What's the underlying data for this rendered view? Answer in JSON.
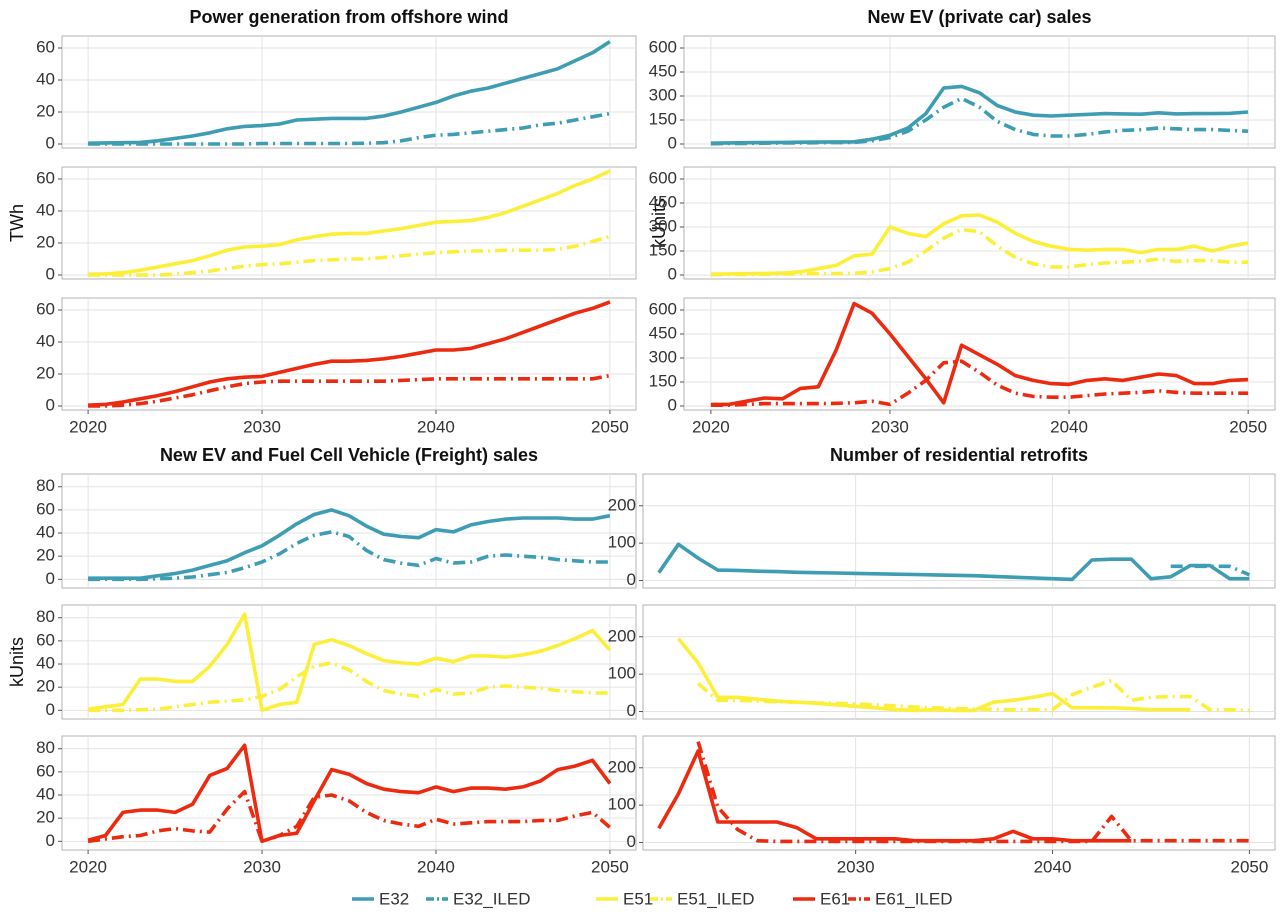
{
  "chart_data": [
    {
      "type": "line",
      "title": "Power generation from offshore wind",
      "y_label": "TWh",
      "x": [
        2020,
        2021,
        2022,
        2023,
        2024,
        2025,
        2026,
        2027,
        2028,
        2029,
        2030,
        2031,
        2032,
        2033,
        2034,
        2035,
        2036,
        2037,
        2038,
        2039,
        2040,
        2041,
        2042,
        2043,
        2044,
        2045,
        2046,
        2047,
        2048,
        2049,
        2050
      ],
      "xlim": [
        2018.5,
        2051.5
      ],
      "xticks": [
        2020,
        2030,
        2040,
        2050
      ],
      "ylim": [
        -2.5,
        67.5
      ],
      "yticks": [
        0,
        20,
        40,
        60
      ],
      "grid": true,
      "series": [
        {
          "name": "E32",
          "color": "#3e9db3",
          "linestyle": "solid",
          "values": [
            0.5,
            0.7,
            0.8,
            1,
            2,
            3.5,
            5,
            7,
            9.5,
            11,
            11.5,
            12.5,
            15,
            15.5,
            16,
            16,
            16,
            17.5,
            20,
            23,
            26,
            30,
            33,
            35,
            38,
            41,
            44,
            47,
            52,
            57,
            64
          ]
        },
        {
          "name": "E32_ILED",
          "color": "#3e9db3",
          "linestyle": "dashdot",
          "values": [
            0,
            0,
            0,
            0,
            0,
            0,
            0,
            0,
            0,
            0,
            0.3,
            0.3,
            0.3,
            0.3,
            0.3,
            0.3,
            0.5,
            0.8,
            2,
            4,
            5.5,
            6,
            7,
            8,
            9,
            10,
            12,
            13,
            15,
            17,
            19
          ]
        },
        {
          "name": "E51",
          "color": "#fcef3a",
          "linestyle": "solid",
          "values": [
            0.5,
            0.7,
            1.5,
            3,
            5,
            7,
            9,
            12,
            15.5,
            17.5,
            18,
            19,
            22,
            24,
            25.5,
            26,
            26,
            27.5,
            29,
            31,
            33,
            33.5,
            34,
            36,
            39,
            43,
            47,
            51,
            56,
            60,
            65
          ]
        },
        {
          "name": "E51_ILED",
          "color": "#fcef3a",
          "linestyle": "dashdot",
          "values": [
            0,
            0,
            0,
            0,
            0,
            0.5,
            1.5,
            2.5,
            4,
            5.5,
            6.5,
            7,
            8,
            9,
            9.5,
            10,
            10,
            11,
            12,
            13,
            14,
            14.5,
            15,
            15,
            15.5,
            15.5,
            15.5,
            16,
            18,
            21,
            24
          ]
        },
        {
          "name": "E61",
          "color": "#ec2a10",
          "linestyle": "solid",
          "values": [
            0.5,
            1,
            2.5,
            4.5,
            6.5,
            9,
            12,
            15,
            17,
            18,
            18.5,
            21,
            23.5,
            26,
            28,
            28,
            28.5,
            29.5,
            31,
            33,
            35,
            35,
            36,
            39,
            42,
            46,
            50,
            54,
            58,
            61,
            65
          ]
        },
        {
          "name": "E61_ILED",
          "color": "#ec2a10",
          "linestyle": "dashdot",
          "values": [
            0,
            0,
            0.5,
            1.5,
            3,
            5,
            7,
            9.5,
            12,
            14,
            15,
            15.5,
            15.5,
            15.5,
            15.5,
            15.5,
            15.5,
            15.5,
            16,
            16.5,
            17,
            17,
            17,
            17,
            17,
            17,
            17,
            17,
            17,
            17,
            19
          ]
        }
      ]
    },
    {
      "type": "line",
      "title": "New EV (private car) sales",
      "y_label": "kUnits",
      "x": [
        2020,
        2021,
        2022,
        2023,
        2024,
        2025,
        2026,
        2027,
        2028,
        2029,
        2030,
        2031,
        2032,
        2033,
        2034,
        2035,
        2036,
        2037,
        2038,
        2039,
        2040,
        2041,
        2042,
        2043,
        2044,
        2045,
        2046,
        2047,
        2048,
        2049,
        2050
      ],
      "xlim": [
        2018.5,
        2051.5
      ],
      "xticks": [
        2020,
        2030,
        2040,
        2050
      ],
      "ylim": [
        -25,
        675
      ],
      "yticks": [
        0,
        150,
        300,
        450,
        600
      ],
      "grid": true,
      "series": [
        {
          "name": "E32",
          "color": "#3e9db3",
          "linestyle": "solid",
          "values": [
            5,
            7,
            8,
            9,
            10,
            11,
            12,
            13,
            14,
            30,
            55,
            100,
            190,
            350,
            360,
            320,
            240,
            200,
            180,
            175,
            180,
            185,
            190,
            188,
            186,
            195,
            188,
            190,
            190,
            192,
            200
          ]
        },
        {
          "name": "E32_ILED",
          "color": "#3e9db3",
          "linestyle": "dashdot",
          "values": [
            2,
            3,
            4,
            5,
            6,
            7,
            8,
            9,
            10,
            20,
            40,
            80,
            150,
            230,
            285,
            230,
            140,
            90,
            60,
            50,
            50,
            60,
            75,
            85,
            90,
            100,
            95,
            90,
            90,
            85,
            80
          ]
        },
        {
          "name": "E51",
          "color": "#fcef3a",
          "linestyle": "solid",
          "values": [
            5,
            7,
            8,
            10,
            12,
            20,
            40,
            60,
            120,
            130,
            300,
            260,
            240,
            320,
            370,
            375,
            330,
            260,
            210,
            180,
            160,
            155,
            160,
            160,
            140,
            160,
            160,
            180,
            150,
            180,
            200
          ]
        },
        {
          "name": "E51_ILED",
          "color": "#fcef3a",
          "linestyle": "dashdot",
          "values": [
            2,
            3,
            4,
            5,
            6,
            7,
            8,
            9,
            10,
            20,
            40,
            80,
            150,
            230,
            285,
            270,
            180,
            110,
            70,
            50,
            50,
            65,
            75,
            80,
            85,
            100,
            85,
            90,
            90,
            80,
            80
          ]
        },
        {
          "name": "E61",
          "color": "#ec2a10",
          "linestyle": "solid",
          "values": [
            10,
            10,
            30,
            50,
            45,
            110,
            120,
            350,
            640,
            580,
            450,
            310,
            170,
            20,
            380,
            320,
            260,
            190,
            160,
            140,
            135,
            160,
            170,
            160,
            180,
            200,
            190,
            140,
            140,
            160,
            165
          ]
        },
        {
          "name": "E61_ILED",
          "color": "#ec2a10",
          "linestyle": "dashdot",
          "values": [
            5,
            5,
            10,
            15,
            15,
            15,
            15,
            17,
            20,
            30,
            10,
            80,
            160,
            270,
            280,
            210,
            130,
            80,
            60,
            55,
            55,
            65,
            75,
            80,
            85,
            95,
            85,
            80,
            80,
            80,
            80
          ]
        }
      ]
    },
    {
      "type": "line",
      "title": "New EV and Fuel Cell Vehicle (Freight) sales",
      "y_label": "kUnits",
      "x": [
        2020,
        2021,
        2022,
        2023,
        2024,
        2025,
        2026,
        2027,
        2028,
        2029,
        2030,
        2031,
        2032,
        2033,
        2034,
        2035,
        2036,
        2037,
        2038,
        2039,
        2040,
        2041,
        2042,
        2043,
        2044,
        2045,
        2046,
        2047,
        2048,
        2049,
        2050
      ],
      "xlim": [
        2018.5,
        2051.5
      ],
      "xticks": [
        2020,
        2030,
        2040,
        2050
      ],
      "ylim": [
        -7.5,
        91
      ],
      "yticks": [
        0,
        20,
        40,
        60,
        80
      ],
      "grid": true,
      "series": [
        {
          "name": "E32",
          "color": "#3e9db3",
          "linestyle": "solid",
          "values": [
            1,
            1,
            1,
            1,
            3,
            5,
            8,
            12,
            16,
            23,
            29,
            38,
            48,
            56,
            60,
            55,
            46,
            39,
            37,
            36,
            43,
            41,
            47,
            50,
            52,
            53,
            53,
            53,
            52,
            52,
            55
          ]
        },
        {
          "name": "E32_ILED",
          "color": "#3e9db3",
          "linestyle": "dashdot",
          "values": [
            0,
            0,
            0,
            0,
            0.5,
            1,
            2,
            4,
            6,
            10,
            15,
            22,
            31,
            38,
            41,
            37,
            25,
            17,
            14,
            12,
            18,
            14,
            15,
            20,
            21,
            20,
            19,
            17,
            16,
            15,
            15
          ]
        },
        {
          "name": "E51",
          "color": "#fcef3a",
          "linestyle": "solid",
          "values": [
            1,
            3,
            5,
            27,
            27,
            25,
            25,
            38,
            57,
            83,
            0,
            5,
            7,
            57,
            61,
            56,
            49,
            43,
            41,
            40,
            45,
            42,
            47,
            47,
            46,
            48,
            51,
            56,
            62,
            69,
            52
          ]
        },
        {
          "name": "E51_ILED",
          "color": "#fcef3a",
          "linestyle": "dashdot",
          "values": [
            0,
            0,
            0,
            0.5,
            1,
            3,
            5,
            7,
            8,
            9,
            12,
            18,
            29,
            38,
            41,
            35,
            25,
            17,
            14,
            12,
            18,
            14,
            15,
            20,
            21,
            20,
            19,
            17,
            16,
            15,
            15
          ]
        },
        {
          "name": "E61",
          "color": "#ec2a10",
          "linestyle": "solid",
          "values": [
            1,
            5,
            25,
            27,
            27,
            25,
            32,
            57,
            63,
            83,
            0,
            5,
            7,
            35,
            62,
            58,
            50,
            45,
            43,
            42,
            47,
            43,
            46,
            46,
            45,
            47,
            52,
            62,
            65,
            70,
            50
          ]
        },
        {
          "name": "E61_ILED",
          "color": "#ec2a10",
          "linestyle": "dashdot",
          "values": [
            0,
            2,
            4,
            5,
            9,
            11,
            9,
            8,
            28,
            43,
            0,
            5,
            13,
            38,
            40,
            35,
            25,
            18,
            15,
            13,
            19,
            15,
            16,
            17,
            17,
            17,
            18,
            18,
            22,
            25,
            12
          ]
        }
      ]
    },
    {
      "type": "line",
      "title": "Number of residential retrofits",
      "y_label": "kUnits",
      "x": [
        2020,
        2021,
        2022,
        2023,
        2024,
        2025,
        2026,
        2027,
        2028,
        2029,
        2030,
        2031,
        2032,
        2033,
        2034,
        2035,
        2036,
        2037,
        2038,
        2039,
        2040,
        2041,
        2042,
        2043,
        2044,
        2045,
        2046,
        2047,
        2048,
        2049,
        2050
      ],
      "xlim": [
        2019.2,
        2051.3
      ],
      "xticks": [
        2030,
        2040,
        2050
      ],
      "ylim": [
        -20,
        285
      ],
      "yticks": [
        0,
        100,
        200
      ],
      "grid": true,
      "series": [
        {
          "name": "E32",
          "color": "#3e9db3",
          "linestyle": "solid",
          "values": [
            21,
            97,
            60,
            28,
            27,
            25,
            24,
            22,
            21,
            20,
            19,
            18,
            17,
            16,
            15,
            14,
            13,
            11,
            9,
            7,
            5,
            3,
            55,
            57,
            57,
            5,
            10,
            40,
            40,
            5,
            5
          ]
        },
        {
          "name": "E32_ILED",
          "color": "#3e9db3",
          "linestyle": "dashdot",
          "values": [
            null,
            null,
            null,
            null,
            null,
            null,
            null,
            null,
            null,
            null,
            null,
            null,
            null,
            null,
            null,
            null,
            null,
            null,
            null,
            null,
            null,
            null,
            null,
            null,
            null,
            null,
            38,
            38,
            38,
            38,
            15
          ]
        },
        {
          "name": "E51",
          "color": "#fcef3a",
          "linestyle": "solid",
          "values": [
            null,
            195,
            130,
            38,
            38,
            33,
            28,
            25,
            22,
            18,
            14,
            10,
            5,
            3,
            5,
            3,
            3,
            25,
            30,
            38,
            48,
            10,
            10,
            10,
            8,
            5,
            5,
            5,
            null,
            null,
            null
          ]
        },
        {
          "name": "E51_ILED",
          "color": "#fcef3a",
          "linestyle": "dashdot",
          "values": [
            null,
            null,
            75,
            30,
            30,
            28,
            26,
            25,
            23,
            22,
            20,
            18,
            15,
            12,
            10,
            8,
            7,
            6,
            5,
            5,
            5,
            45,
            65,
            83,
            30,
            38,
            40,
            40,
            5,
            5,
            3
          ]
        },
        {
          "name": "E61",
          "color": "#ec2a10",
          "linestyle": "solid",
          "values": [
            38,
            130,
            245,
            55,
            55,
            55,
            55,
            40,
            10,
            10,
            10,
            10,
            10,
            5,
            5,
            5,
            5,
            10,
            30,
            10,
            10,
            5,
            5,
            5,
            5,
            null,
            null,
            null,
            null,
            null,
            null
          ]
        },
        {
          "name": "E61_ILED",
          "color": "#ec2a10",
          "linestyle": "dashdot",
          "values": [
            null,
            null,
            270,
            95,
            35,
            5,
            3,
            3,
            3,
            3,
            3,
            3,
            3,
            3,
            3,
            3,
            3,
            3,
            3,
            3,
            3,
            3,
            3,
            70,
            5,
            5,
            5,
            5,
            5,
            5,
            5
          ]
        }
      ]
    }
  ]
}
